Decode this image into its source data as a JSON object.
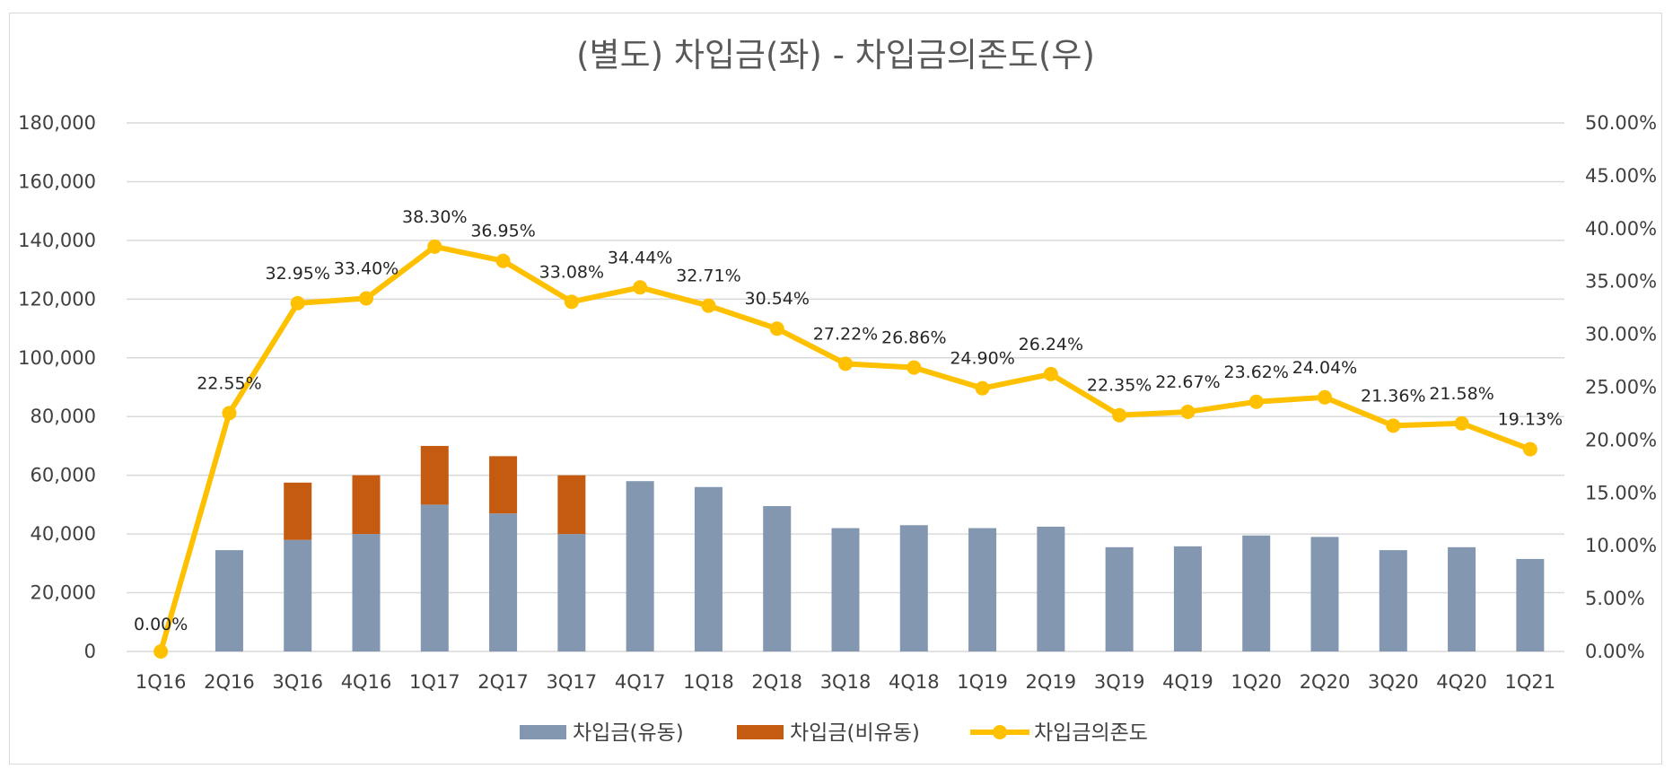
{
  "chart_data": {
    "type": "bar",
    "title": "(별도) 차입금(좌) - 차입금의존도(우)",
    "categories": [
      "1Q16",
      "2Q16",
      "3Q16",
      "4Q16",
      "1Q17",
      "2Q17",
      "3Q17",
      "4Q17",
      "1Q18",
      "2Q18",
      "3Q18",
      "4Q18",
      "1Q19",
      "2Q19",
      "3Q19",
      "4Q19",
      "1Q20",
      "2Q20",
      "3Q20",
      "4Q20",
      "1Q21"
    ],
    "series": [
      {
        "name": "차입금(유동)",
        "type": "bar",
        "axis": "left",
        "color": "#8497b0",
        "values": [
          0,
          34500,
          38000,
          40000,
          50000,
          47000,
          40000,
          58000,
          56000,
          49500,
          42000,
          43000,
          42000,
          42500,
          35500,
          35800,
          39500,
          39000,
          34500,
          35500,
          31500
        ]
      },
      {
        "name": "차입금(비유동)",
        "type": "bar",
        "axis": "left",
        "color": "#c55a11",
        "values": [
          0,
          0,
          19500,
          20000,
          20000,
          19500,
          20000,
          0,
          0,
          0,
          0,
          0,
          0,
          0,
          0,
          0,
          0,
          0,
          0,
          0,
          0
        ]
      },
      {
        "name": "차입금의존도",
        "type": "line",
        "axis": "right",
        "color": "#ffc000",
        "values": [
          0.0,
          22.55,
          32.95,
          33.4,
          38.3,
          36.95,
          33.08,
          34.44,
          32.71,
          30.54,
          27.22,
          26.86,
          24.9,
          26.24,
          22.35,
          22.67,
          23.62,
          24.04,
          21.36,
          21.58,
          19.13
        ],
        "labels": [
          "0.00%",
          "22.55%",
          "32.95%",
          "33.40%",
          "38.30%",
          "36.95%",
          "33.08%",
          "34.44%",
          "32.71%",
          "30.54%",
          "27.22%",
          "26.86%",
          "24.90%",
          "26.24%",
          "22.35%",
          "22.67%",
          "23.62%",
          "24.04%",
          "21.36%",
          "21.58%",
          "19.13%"
        ]
      }
    ],
    "y_left": {
      "min": 0,
      "max": 180000,
      "step": 20000,
      "tick_labels": [
        "0",
        "20,000",
        "40,000",
        "60,000",
        "80,000",
        "100,000",
        "120,000",
        "140,000",
        "160,000",
        "180,000"
      ]
    },
    "y_right": {
      "min": 0,
      "max": 50,
      "step": 5,
      "tick_labels": [
        "0.00%",
        "5.00%",
        "10.00%",
        "15.00%",
        "20.00%",
        "25.00%",
        "30.00%",
        "35.00%",
        "40.00%",
        "45.00%",
        "50.00%"
      ]
    },
    "grid": true,
    "legend": "bottom"
  }
}
